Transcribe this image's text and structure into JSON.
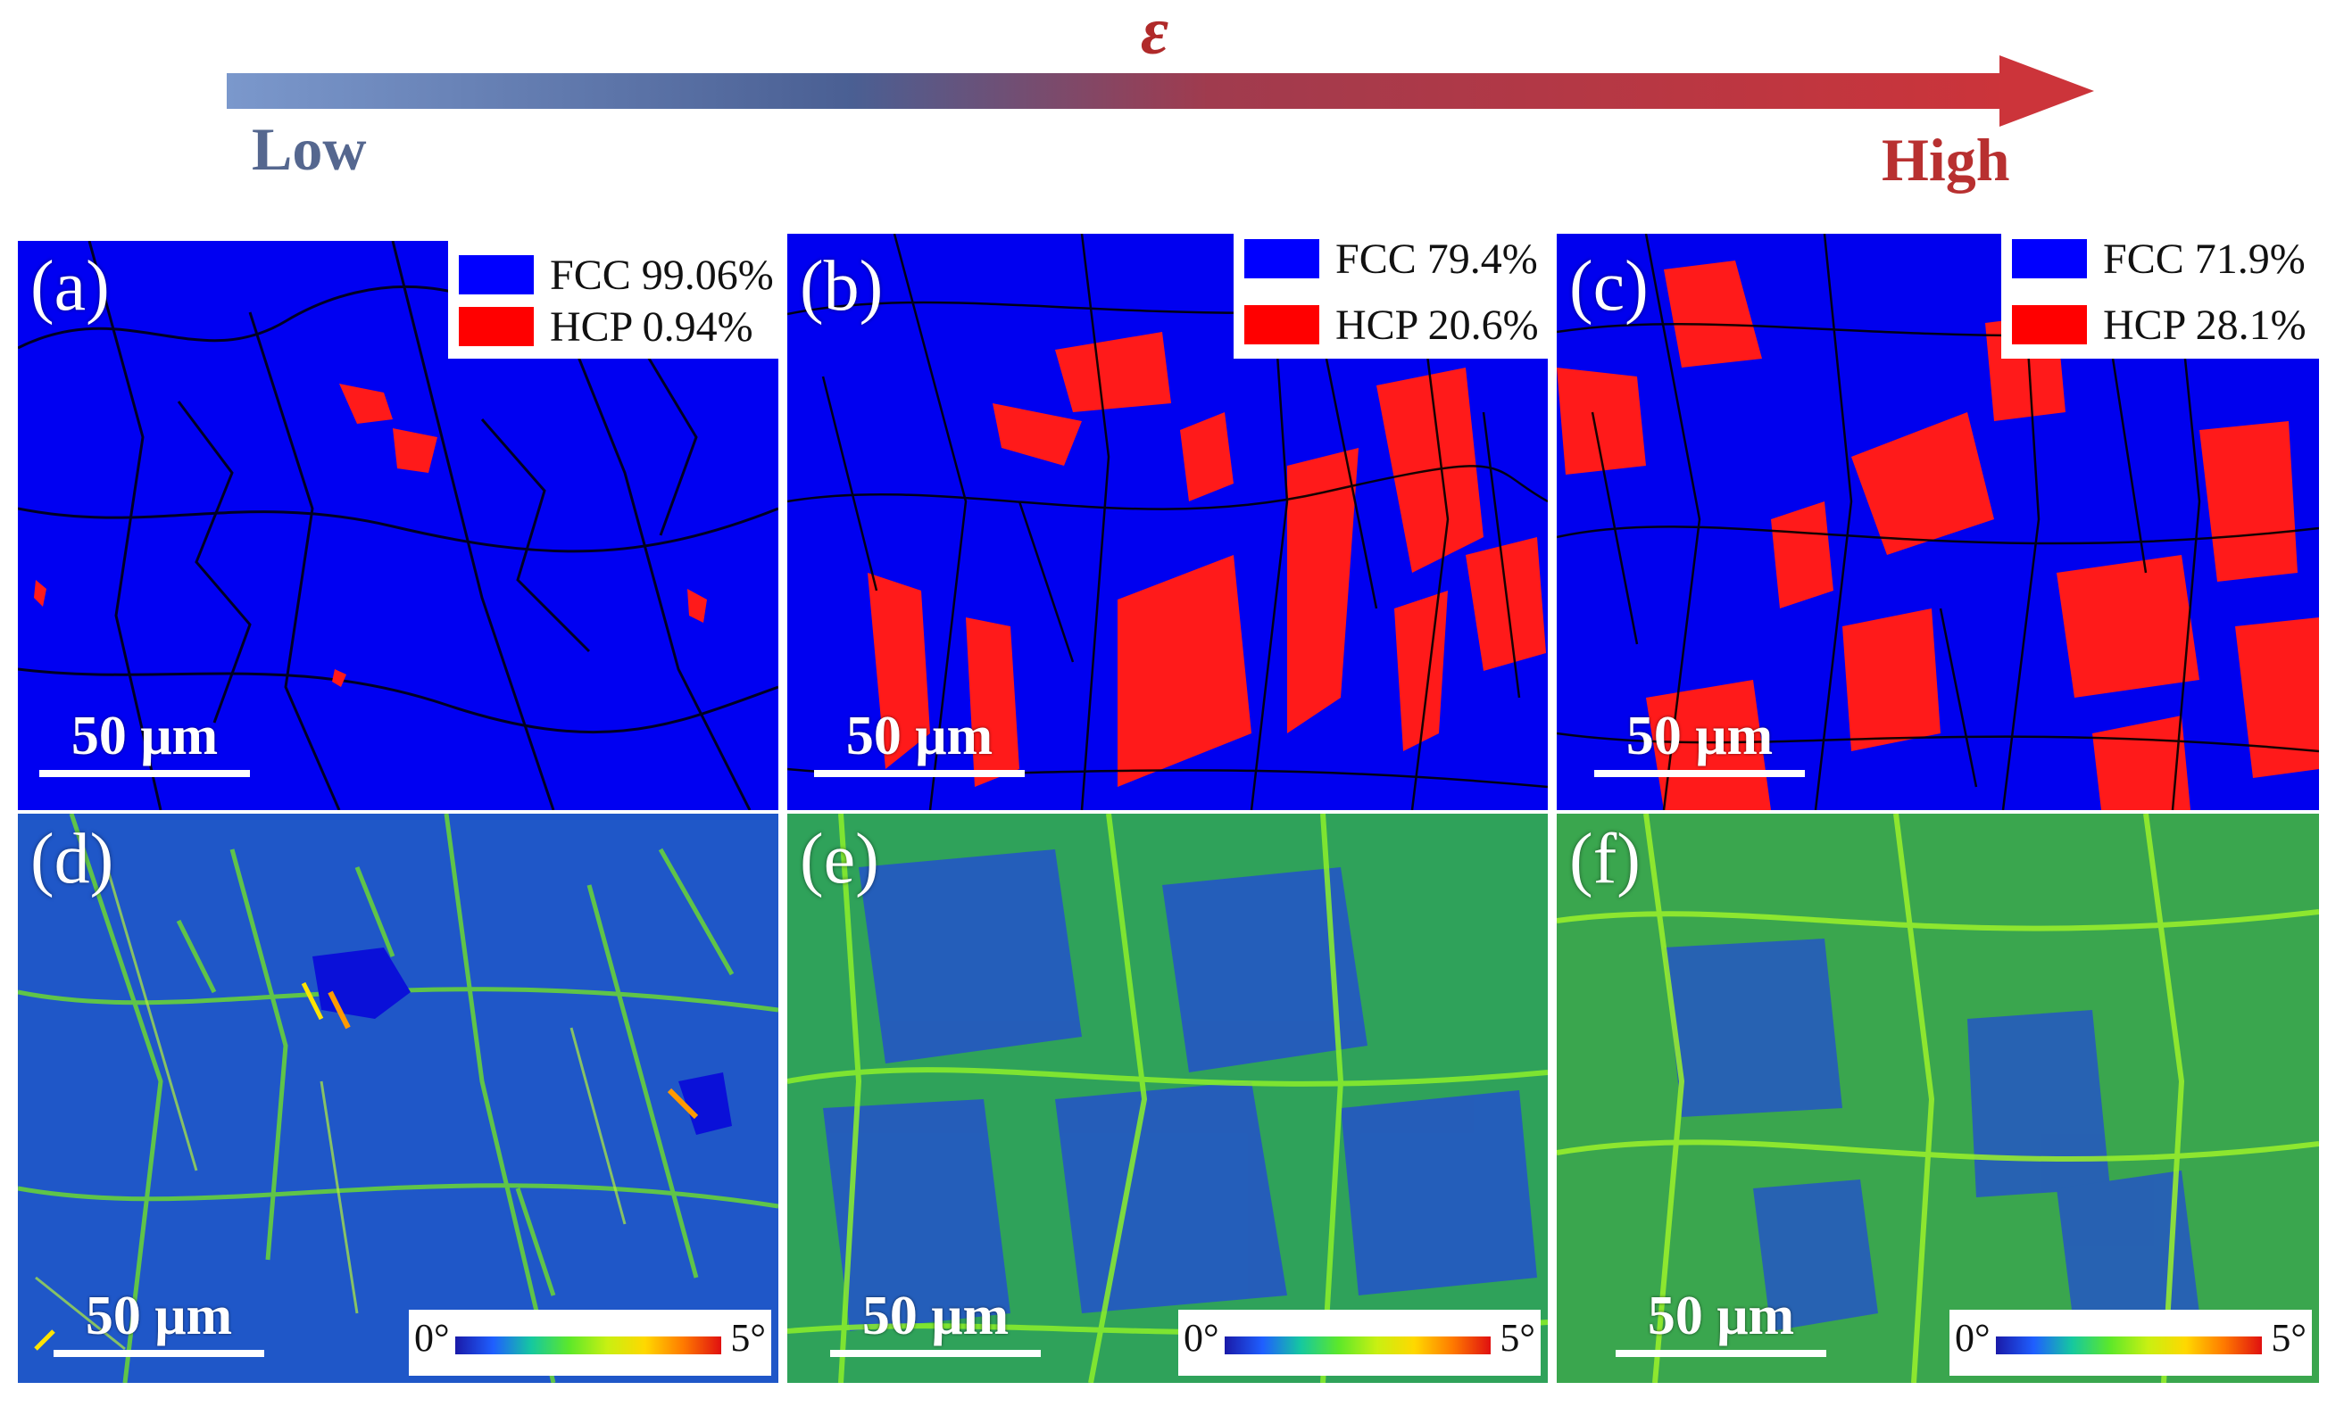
{
  "header": {
    "strain_symbol": "ε",
    "low_label": "Low",
    "high_label": "High",
    "arrow_colors": {
      "start": "#6d8cc4",
      "mid": "#4a5f93",
      "end": "#c8323a"
    }
  },
  "panels": [
    {
      "label": "(a)",
      "type": "phase",
      "scale_bar": "50 μm",
      "legend": [
        {
          "phase": "FCC",
          "value": "99.06%",
          "color": "#0000ff"
        },
        {
          "phase": "HCP",
          "value": "0.94%",
          "color": "#ff0000"
        }
      ]
    },
    {
      "label": "(b)",
      "type": "phase",
      "scale_bar": "50 μm",
      "legend": [
        {
          "phase": "FCC",
          "value": "79.4%",
          "color": "#0000ff"
        },
        {
          "phase": "HCP",
          "value": "20.6%",
          "color": "#ff0000"
        }
      ]
    },
    {
      "label": "(c)",
      "type": "phase",
      "scale_bar": "50 μm",
      "legend": [
        {
          "phase": "FCC",
          "value": "71.9%",
          "color": "#0000ff"
        },
        {
          "phase": "HCP",
          "value": "28.1%",
          "color": "#ff0000"
        }
      ]
    },
    {
      "label": "(d)",
      "type": "kam",
      "scale_bar": "50 μm",
      "colorbar": {
        "min": "0°",
        "max": "5°"
      }
    },
    {
      "label": "(e)",
      "type": "kam",
      "scale_bar": "50 μm",
      "colorbar": {
        "min": "0°",
        "max": "5°"
      }
    },
    {
      "label": "(f)",
      "type": "kam",
      "scale_bar": "50 μm",
      "colorbar": {
        "min": "0°",
        "max": "5°"
      }
    }
  ]
}
